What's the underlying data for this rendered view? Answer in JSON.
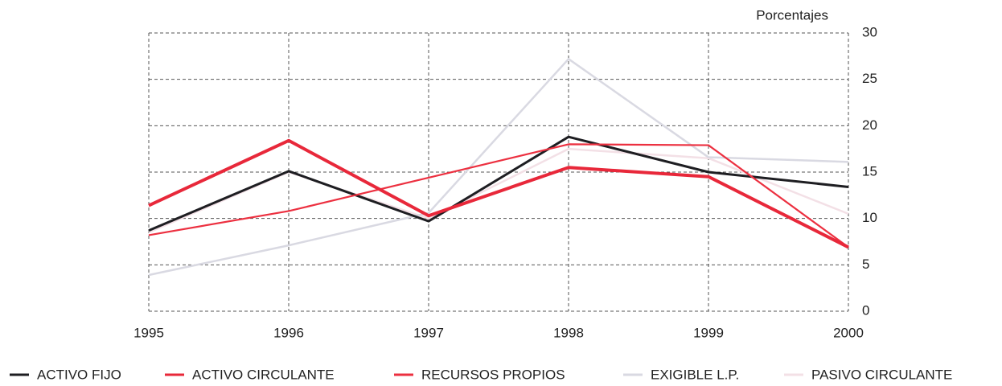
{
  "chart_data": {
    "type": "line",
    "y_label": "Porcentajes",
    "categories": [
      "1995",
      "1996",
      "1997",
      "1998",
      "1999",
      "2000"
    ],
    "series": [
      {
        "name": "ACTIVO FIJO",
        "color": "#1e1e22",
        "values": [
          8.7,
          15.1,
          9.7,
          18.8,
          15.0,
          13.4
        ]
      },
      {
        "name": "ACTIVO CIRCULANTE",
        "color": "#e8283a",
        "values": [
          11.4,
          18.4,
          10.3,
          15.5,
          14.5,
          6.9
        ]
      },
      {
        "name": "RECURSOS PROPIOS",
        "color": "#ec3040",
        "values": [
          8.2,
          10.8,
          14.4,
          18.0,
          17.9,
          6.9
        ]
      },
      {
        "name": "EXIGIBLE L.P.",
        "color": "#d9d9e2",
        "values": [
          3.9,
          7.1,
          10.6,
          27.2,
          16.6,
          16.1
        ]
      },
      {
        "name": "PASIVO CIRCULANTE",
        "color": "#f3e0e6",
        "values": [
          8.5,
          15.0,
          10.0,
          17.5,
          16.5,
          10.5
        ]
      }
    ],
    "ylim": [
      0,
      30
    ],
    "yticks": [
      0,
      5,
      10,
      15,
      20,
      25,
      30
    ],
    "grid": true
  }
}
